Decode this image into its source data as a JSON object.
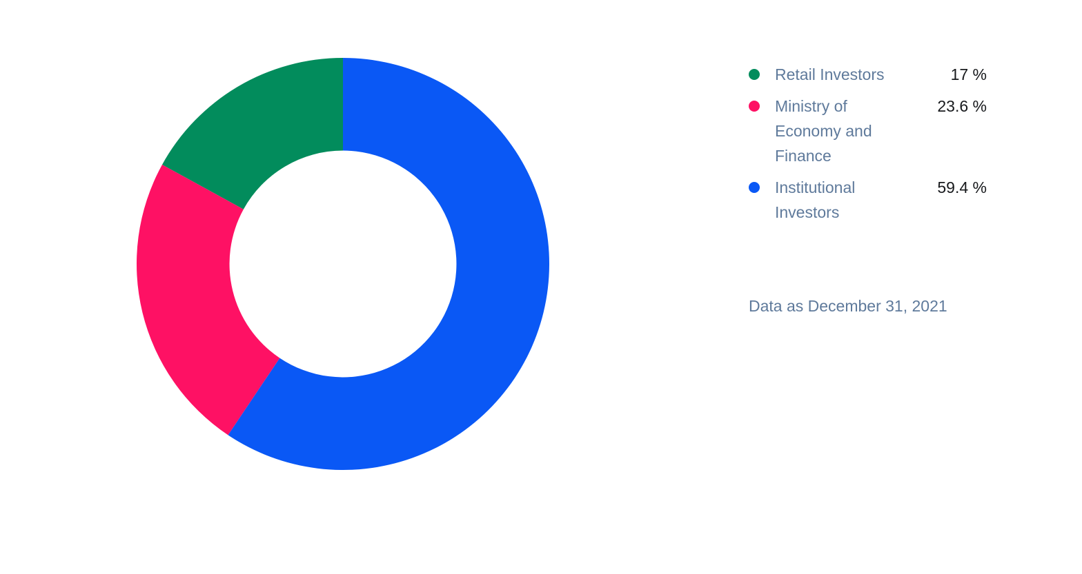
{
  "page": {
    "background_color": "#ffffff",
    "legend_label_color": "#5f7a9b",
    "legend_value_color": "#17191c"
  },
  "chart_data": {
    "type": "pie",
    "subtype": "donut",
    "title": "",
    "categories": [
      "Retail Investors",
      "Ministry of Economy and Finance",
      "Institutional Investors"
    ],
    "values": [
      17,
      23.6,
      59.4
    ],
    "unit": "%",
    "series": [
      {
        "label": "Retail Investors",
        "value": 17,
        "display_value": "17 %",
        "color": "#028c5c"
      },
      {
        "label": "Ministry of Economy and Finance",
        "value": 23.6,
        "display_value": "23.6 %",
        "color": "#fe1164"
      },
      {
        "label": "Institutional Investors",
        "value": 59.4,
        "display_value": "59.4 %",
        "color": "#0a58f5"
      }
    ],
    "start_angle_deg": -90,
    "direction": "counterclockwise",
    "inner_radius_ratio": 0.55,
    "legend_position": "right",
    "grid": false
  },
  "footnote": {
    "text": "Data as December 31, 2021"
  }
}
